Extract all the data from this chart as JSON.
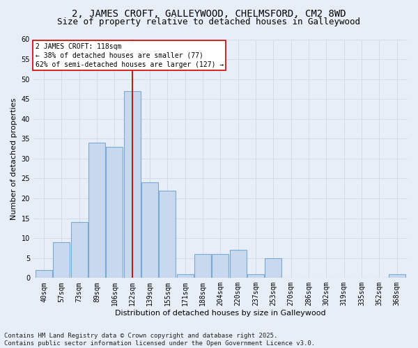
{
  "title_line1": "2, JAMES CROFT, GALLEYWOOD, CHELMSFORD, CM2 8WD",
  "title_line2": "Size of property relative to detached houses in Galleywood",
  "xlabel": "Distribution of detached houses by size in Galleywood",
  "ylabel": "Number of detached properties",
  "categories": [
    "40sqm",
    "57sqm",
    "73sqm",
    "89sqm",
    "106sqm",
    "122sqm",
    "139sqm",
    "155sqm",
    "171sqm",
    "188sqm",
    "204sqm",
    "220sqm",
    "237sqm",
    "253sqm",
    "270sqm",
    "286sqm",
    "302sqm",
    "319sqm",
    "335sqm",
    "352sqm",
    "368sqm"
  ],
  "values": [
    2,
    9,
    14,
    34,
    33,
    47,
    24,
    22,
    1,
    6,
    6,
    7,
    1,
    5,
    0,
    0,
    0,
    0,
    0,
    0,
    1
  ],
  "bar_color": "#c8d8ee",
  "bar_edgecolor": "#7aaad4",
  "grid_color": "#d0dcea",
  "background_color": "#e8eef8",
  "plot_bg_color": "#e8eef8",
  "vline_x_index": 5,
  "vline_color": "#cc0000",
  "annotation_text": "2 JAMES CROFT: 118sqm\n← 38% of detached houses are smaller (77)\n62% of semi-detached houses are larger (127) →",
  "annotation_box_edgecolor": "#cc0000",
  "ylim": [
    0,
    60
  ],
  "yticks": [
    0,
    5,
    10,
    15,
    20,
    25,
    30,
    35,
    40,
    45,
    50,
    55,
    60
  ],
  "footer_text": "Contains HM Land Registry data © Crown copyright and database right 2025.\nContains public sector information licensed under the Open Government Licence v3.0.",
  "title_fontsize": 10,
  "subtitle_fontsize": 9,
  "axis_label_fontsize": 8,
  "tick_fontsize": 7,
  "annotation_fontsize": 7,
  "footer_fontsize": 6.5
}
